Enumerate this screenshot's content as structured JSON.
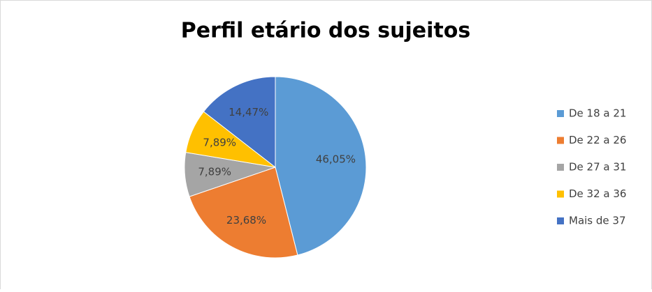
{
  "chart_data": {
    "type": "pie",
    "title": "Perfil etário dos sujeitos",
    "categories": [
      "De 18 a 21",
      "De 22 a 26",
      "De 27 a 31",
      "De 32 a 36",
      "Mais de 37"
    ],
    "values": [
      46.05,
      23.68,
      7.89,
      7.89,
      14.47
    ],
    "value_labels": [
      "46,05%",
      "23,68%",
      "7,89%",
      "7,89%",
      "14,47%"
    ],
    "colors": [
      "#5b9bd5",
      "#ed7d31",
      "#a5a5a5",
      "#ffc000",
      "#4472c4"
    ],
    "legend": "right"
  }
}
